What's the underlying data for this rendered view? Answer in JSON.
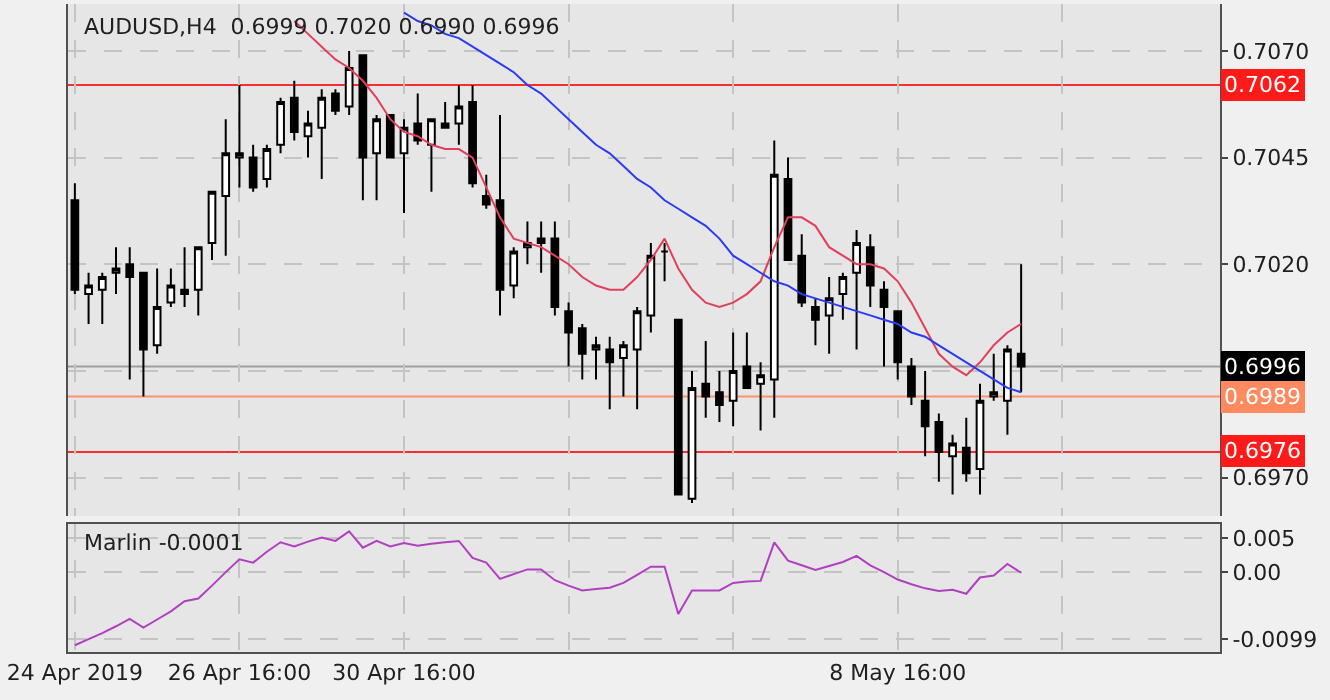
{
  "chart_data": [
    {
      "type": "candlestick",
      "title": "AUDUSD,H4  0.6999 0.7020 0.6990 0.6996",
      "tick_labels": "y",
      "grid": true,
      "color": "#000000",
      "categories": [
        null,
        null,
        null,
        null,
        null,
        null,
        null,
        null,
        null,
        null,
        null,
        null,
        null,
        null,
        null,
        null,
        null,
        null,
        null,
        null,
        null,
        null,
        null,
        null,
        null,
        null,
        null,
        null,
        null,
        null,
        null,
        null,
        null,
        null,
        null,
        null,
        null,
        null,
        null,
        null,
        null,
        null,
        null,
        null,
        null,
        null,
        null,
        null,
        null,
        null,
        null,
        null,
        null,
        null,
        null,
        null,
        null,
        null,
        null,
        null,
        null,
        null,
        null,
        null,
        null,
        null,
        null,
        null,
        null,
        null,
        null,
        null,
        null,
        null,
        null,
        null,
        null,
        null,
        null,
        null,
        null,
        null,
        null,
        null
      ],
      "ylim": [
        0.6961,
        0.7081
      ],
      "yticks": [
        {
          "value": 0.707,
          "label": "0.7070"
        },
        {
          "value": 0.7045,
          "label": "0.7045"
        },
        {
          "value": 0.702,
          "label": "0.7020"
        },
        {
          "value": 0.6995,
          "label": null
        },
        {
          "value": 0.697,
          "label": "0.6970"
        }
      ],
      "ohlc": [
        [
          0.7035,
          0.7039,
          0.7013,
          0.7014
        ],
        [
          0.7013,
          0.7018,
          0.7006,
          0.7015
        ],
        [
          0.7014,
          0.7018,
          0.7006,
          0.7017
        ],
        [
          0.7018,
          0.7024,
          0.7013,
          0.7019
        ],
        [
          0.702,
          0.7024,
          0.6993,
          0.7017
        ],
        [
          0.7018,
          0.7018,
          0.6989,
          0.7
        ],
        [
          0.7001,
          0.7019,
          0.6999,
          0.701
        ],
        [
          0.7011,
          0.7019,
          0.701,
          0.7015
        ],
        [
          0.7014,
          0.7024,
          0.701,
          0.7013
        ],
        [
          0.7014,
          0.7024,
          0.7008,
          0.7024
        ],
        [
          0.7025,
          0.7037,
          0.7021,
          0.7037
        ],
        [
          0.7036,
          0.7054,
          0.7022,
          0.7046
        ],
        [
          0.7045,
          0.7062,
          0.7038,
          0.7046
        ],
        [
          0.7045,
          0.7048,
          0.7037,
          0.7038
        ],
        [
          0.704,
          0.7048,
          0.7038,
          0.7047
        ],
        [
          0.7048,
          0.7059,
          0.7046,
          0.7058
        ],
        [
          0.7059,
          0.7063,
          0.7049,
          0.7051
        ],
        [
          0.705,
          0.7056,
          0.7045,
          0.7053
        ],
        [
          0.7052,
          0.7061,
          0.704,
          0.7059
        ],
        [
          0.706,
          0.7061,
          0.7055,
          0.7056
        ],
        [
          0.7057,
          0.707,
          0.7055,
          0.7066
        ],
        [
          0.7069,
          0.7069,
          0.7035,
          0.7045
        ],
        [
          0.7046,
          0.7055,
          0.7035,
          0.7054
        ],
        [
          0.7055,
          0.7055,
          0.7045,
          0.7045
        ],
        [
          0.7046,
          0.7054,
          0.7032,
          0.7052
        ],
        [
          0.7053,
          0.706,
          0.7048,
          0.7049
        ],
        [
          0.7048,
          0.7054,
          0.7037,
          0.7054
        ],
        [
          0.7053,
          0.7058,
          0.7052,
          0.7052
        ],
        [
          0.7053,
          0.7062,
          0.7048,
          0.7057
        ],
        [
          0.7058,
          0.7062,
          0.7038,
          0.7039
        ],
        [
          0.7036,
          0.7041,
          0.7033,
          0.7034
        ],
        [
          0.7035,
          0.7055,
          0.7008,
          0.7014
        ],
        [
          0.7015,
          0.7024,
          0.7012,
          0.7023
        ],
        [
          0.7024,
          0.703,
          0.702,
          0.7025
        ],
        [
          0.7026,
          0.703,
          0.7018,
          0.7025
        ],
        [
          0.7026,
          0.703,
          0.7008,
          0.701
        ],
        [
          0.7009,
          0.7011,
          0.6996,
          0.7004
        ],
        [
          0.7005,
          0.7006,
          0.6993,
          0.6999
        ],
        [
          0.7,
          0.7003,
          0.6993,
          0.7001
        ],
        [
          0.7,
          0.7003,
          0.6986,
          0.6997
        ],
        [
          0.6998,
          0.7002,
          0.6989,
          0.7001
        ],
        [
          0.7,
          0.701,
          0.6986,
          0.7009
        ],
        [
          0.7008,
          0.7025,
          0.7004,
          0.7022
        ],
        [
          0.7023,
          0.7025,
          0.7016,
          0.7023
        ],
        [
          0.7007,
          0.7007,
          0.6966,
          0.6966
        ],
        [
          0.6965,
          0.6995,
          0.6964,
          0.6991
        ],
        [
          0.6992,
          0.7002,
          0.6984,
          0.6989
        ],
        [
          0.699,
          0.6995,
          0.6983,
          0.6987
        ],
        [
          0.6988,
          0.7004,
          0.6982,
          0.6995
        ],
        [
          0.6996,
          0.7004,
          0.6991,
          0.6991
        ],
        [
          0.6992,
          0.6997,
          0.6981,
          0.6994
        ],
        [
          0.6993,
          0.7049,
          0.6984,
          0.7041
        ],
        [
          0.704,
          0.7045,
          0.7021,
          0.7021
        ],
        [
          0.7022,
          0.7027,
          0.701,
          0.7011
        ],
        [
          0.701,
          0.7012,
          0.7001,
          0.7007
        ],
        [
          0.7008,
          0.7017,
          0.6999,
          0.7012
        ],
        [
          0.7013,
          0.7018,
          0.7007,
          0.7017
        ],
        [
          0.7018,
          0.7028,
          0.7,
          0.7025
        ],
        [
          0.7024,
          0.7027,
          0.701,
          0.7015
        ],
        [
          0.7014,
          0.7016,
          0.6996,
          0.701
        ],
        [
          0.7009,
          0.7009,
          0.6993,
          0.6997
        ],
        [
          0.6996,
          0.6998,
          0.6987,
          0.6989
        ],
        [
          0.6988,
          0.6995,
          0.6975,
          0.6982
        ],
        [
          0.6983,
          0.6985,
          0.6969,
          0.6976
        ],
        [
          0.6975,
          0.698,
          0.6966,
          0.6978
        ],
        [
          0.6977,
          0.6984,
          0.6969,
          0.6971
        ],
        [
          0.6972,
          0.6992,
          0.6966,
          0.6988
        ],
        [
          0.6989,
          0.6999,
          0.6988,
          0.699
        ],
        [
          0.6988,
          0.7001,
          0.698,
          0.7
        ],
        [
          0.6999,
          0.702,
          0.699,
          0.6996
        ],
        null,
        null,
        null,
        null,
        null,
        null,
        null,
        null,
        null,
        null,
        null,
        null,
        null,
        null
      ],
      "series": [
        {
          "type": "line",
          "color": "#e0405a",
          "values": [
            null,
            null,
            null,
            null,
            null,
            null,
            null,
            null,
            null,
            null,
            null,
            null,
            null,
            null,
            null,
            null,
            0.7077,
            0.7074,
            0.7071,
            0.7068,
            0.7066,
            0.7063,
            0.7059,
            0.7054,
            0.7051,
            0.705,
            0.7048,
            0.7047,
            0.7047,
            0.7045,
            0.7038,
            0.7031,
            0.7026,
            0.7025,
            0.7024,
            0.7022,
            0.702,
            0.7017,
            0.7015,
            0.7014,
            0.7014,
            0.7017,
            0.7021,
            0.7026,
            0.7019,
            0.7014,
            0.7011,
            0.701,
            0.7011,
            0.7013,
            0.7016,
            0.7024,
            0.7031,
            0.7031,
            0.7029,
            0.7024,
            0.7022,
            0.702,
            0.702,
            0.7019,
            0.7016,
            0.7011,
            0.7005,
            0.6999,
            0.6996,
            0.6994,
            0.6997,
            0.7001,
            0.7004,
            0.7006,
            null,
            null,
            null,
            null,
            null,
            null,
            null,
            null,
            null,
            null,
            null,
            null,
            null,
            null
          ]
        },
        {
          "type": "line",
          "color": "#2a3cf0",
          "values": [
            null,
            null,
            null,
            null,
            null,
            null,
            null,
            null,
            null,
            null,
            null,
            null,
            null,
            null,
            null,
            null,
            null,
            null,
            null,
            null,
            null,
            null,
            null,
            null,
            0.7079,
            0.7077,
            0.7076,
            0.7074,
            0.7073,
            0.7071,
            0.7069,
            0.7067,
            0.7065,
            0.7062,
            0.706,
            0.7057,
            0.7054,
            0.7051,
            0.7048,
            0.7046,
            0.7043,
            0.704,
            0.7038,
            0.7035,
            0.7033,
            0.7031,
            0.7029,
            0.7026,
            0.7022,
            0.702,
            0.7018,
            0.7016,
            0.7015,
            0.7013,
            0.7012,
            0.7011,
            0.701,
            0.7009,
            0.7008,
            0.7007,
            0.7006,
            0.7004,
            0.7003,
            0.7001,
            0.6999,
            0.6997,
            0.6995,
            0.6993,
            0.6991,
            0.699,
            null,
            null,
            null,
            null,
            null,
            null,
            null,
            null,
            null,
            null,
            null,
            null,
            null,
            null
          ]
        }
      ],
      "ref_lines": [
        {
          "axis": "y",
          "value": 0.7062,
          "label": "0.7062",
          "color": "#ff1a1a"
        },
        {
          "axis": "y",
          "value": 0.6996,
          "label": "0.6996",
          "color": "#000000"
        },
        {
          "axis": "y",
          "value": 0.6989,
          "label": "0.6989",
          "color": "#ff8a60"
        },
        {
          "axis": "y",
          "value": 0.6976,
          "label": "0.6976",
          "color": "#ff1a1a"
        }
      ]
    },
    {
      "type": "line",
      "title": "Marlin -0.0001",
      "grid": true,
      "categories": [
        "24 Apr 2019",
        null,
        null,
        null,
        null,
        null,
        null,
        null,
        null,
        null,
        null,
        null,
        "26 Apr 16:00",
        null,
        null,
        null,
        null,
        null,
        null,
        null,
        null,
        null,
        null,
        null,
        "30 Apr 16:00",
        null,
        null,
        null,
        null,
        null,
        null,
        null,
        null,
        null,
        null,
        null,
        null,
        null,
        null,
        null,
        null,
        null,
        null,
        null,
        null,
        null,
        null,
        null,
        null,
        null,
        null,
        null,
        null,
        null,
        null,
        null,
        null,
        null,
        null,
        null,
        "8 May 16:00",
        null,
        null,
        null,
        null,
        null,
        null,
        null,
        null,
        null,
        null,
        null,
        null,
        null,
        null,
        null,
        null,
        null,
        null,
        null,
        null,
        null,
        null,
        null
      ],
      "ylim": [
        -0.0118,
        0.0071
      ],
      "yticks": [
        0.005,
        {
          "value": 0,
          "label": "0.00"
        },
        -0.0099
      ],
      "series": [
        {
          "color": "#b040c0",
          "values": [
            -0.0108,
            -0.0099,
            -0.009,
            -0.008,
            -0.0069,
            -0.0082,
            -0.007,
            -0.0058,
            -0.0043,
            -0.0039,
            -0.002,
            0.0,
            0.0019,
            0.0014,
            0.003,
            0.0044,
            0.0038,
            0.0045,
            0.0051,
            0.0046,
            0.006,
            0.0036,
            0.0046,
            0.0038,
            0.0043,
            0.0039,
            0.0042,
            0.0044,
            0.0046,
            0.0021,
            0.0014,
            -0.001,
            -0.0003,
            0.0004,
            0.0004,
            -0.0012,
            -0.002,
            -0.0027,
            -0.0025,
            -0.0023,
            -0.0016,
            -0.0004,
            0.0008,
            0.0008,
            -0.0062,
            -0.0027,
            -0.0027,
            -0.0027,
            -0.0016,
            -0.0014,
            -0.0013,
            0.0044,
            0.0017,
            0.001,
            0.0003,
            0.0009,
            0.0015,
            0.0024,
            0.001,
            0.0,
            -0.0011,
            -0.0018,
            -0.0024,
            -0.0028,
            -0.0026,
            -0.0032,
            -0.0008,
            -0.0005,
            0.0012,
            -0.0001,
            null,
            null,
            null,
            null,
            null,
            null,
            null,
            null,
            null,
            null,
            null,
            null,
            null,
            null
          ]
        }
      ]
    }
  ]
}
